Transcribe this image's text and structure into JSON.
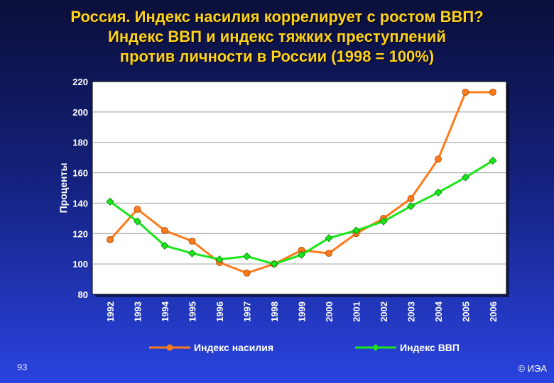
{
  "slide": {
    "title_lines": [
      "Россия. Индекс насилия коррелирует с ростом ВВП?",
      "Индекс ВВП и индекс тяжких преступлений",
      "против личности в России (1998 = 100%)"
    ],
    "page_number": "93",
    "copyright": "© ИЭА"
  },
  "colors": {
    "violence": "#ff7a1a",
    "gdp": "#19e619",
    "plot_background": "#ffffff",
    "grid": "#9a9a9a"
  },
  "chart_data": {
    "type": "line",
    "title": "",
    "xlabel": "",
    "ylabel": "Проценты",
    "ylim": [
      80,
      220
    ],
    "yticks": [
      80,
      100,
      120,
      140,
      160,
      180,
      200,
      220
    ],
    "grid": true,
    "legend_position": "bottom",
    "categories": [
      "1992",
      "1993",
      "1994",
      "1995",
      "1996",
      "1997",
      "1998",
      "1999",
      "2000",
      "2001",
      "2002",
      "2003",
      "2004",
      "2005",
      "2006"
    ],
    "series": [
      {
        "name": "Индекс насилия",
        "color_key": "violence",
        "marker": "circle",
        "values": [
          116,
          136,
          122,
          115,
          101,
          94,
          100,
          109,
          107,
          120,
          130,
          143,
          169,
          213,
          213
        ]
      },
      {
        "name": "Индекс ВВП",
        "color_key": "gdp",
        "marker": "diamond",
        "values": [
          141,
          128,
          112,
          107,
          103,
          105,
          100,
          106,
          117,
          122,
          128,
          138,
          147,
          157,
          168
        ]
      }
    ]
  }
}
